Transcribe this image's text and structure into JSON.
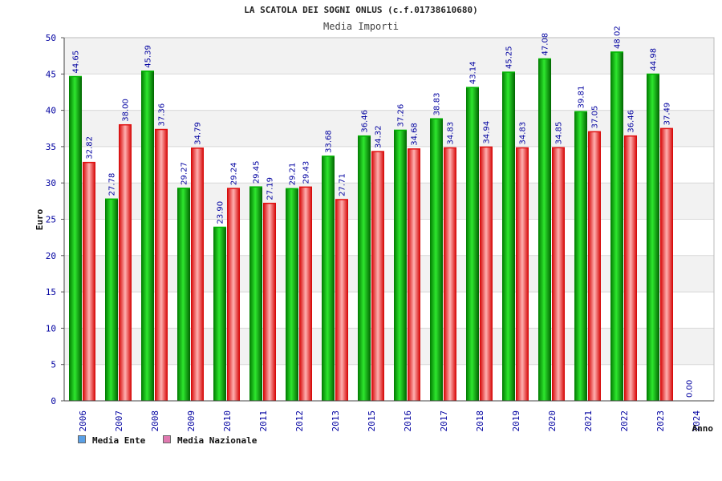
{
  "chart_data": {
    "type": "bar",
    "title": "LA SCATOLA DEI SOGNI ONLUS (c.f.01738610680)",
    "subtitle": "Media Importi",
    "xlabel": "Anno",
    "ylabel": "Euro",
    "ylim": [
      0,
      50
    ],
    "yticks": [
      0,
      5,
      10,
      15,
      20,
      25,
      30,
      35,
      40,
      45,
      50
    ],
    "categories": [
      "2006",
      "2007",
      "2008",
      "2009",
      "2010",
      "2011",
      "2012",
      "2013",
      "2015",
      "2016",
      "2017",
      "2018",
      "2019",
      "2020",
      "2021",
      "2022",
      "2023",
      "2024"
    ],
    "series": [
      {
        "name": "Media Ente",
        "color": "#00b400",
        "values": [
          44.65,
          27.78,
          45.39,
          29.27,
          23.9,
          29.45,
          29.21,
          33.68,
          36.46,
          37.26,
          38.83,
          43.14,
          45.25,
          47.08,
          39.81,
          48.02,
          44.98,
          0.0
        ],
        "labels": [
          "44.65",
          "27.78",
          "45.39",
          "29.27",
          "23.90",
          "29.45",
          "29.21",
          "33.68",
          "36.46",
          "37.26",
          "38.83",
          "43.14",
          "45.25",
          "47.08",
          "39.81",
          "48.02",
          "44.98",
          "0.00"
        ]
      },
      {
        "name": "Media Nazionale",
        "color": "#e01010",
        "values": [
          32.82,
          38.0,
          37.36,
          34.79,
          29.24,
          27.19,
          29.43,
          27.71,
          34.32,
          34.68,
          34.83,
          34.94,
          34.83,
          34.85,
          37.05,
          36.46,
          37.49,
          null
        ],
        "labels": [
          "32.82",
          "38.00",
          "37.36",
          "34.79",
          "29.24",
          "27.19",
          "29.43",
          "27.71",
          "34.32",
          "34.68",
          "34.83",
          "34.94",
          "34.83",
          "34.85",
          "37.05",
          "36.46",
          "37.49",
          ""
        ]
      }
    ],
    "legend": [
      {
        "name": "Media Ente",
        "color": "#5aa0e6"
      },
      {
        "name": "Media Nazionale",
        "color": "#e079b0"
      }
    ],
    "legend_position": "bottom-left",
    "grid": true
  }
}
